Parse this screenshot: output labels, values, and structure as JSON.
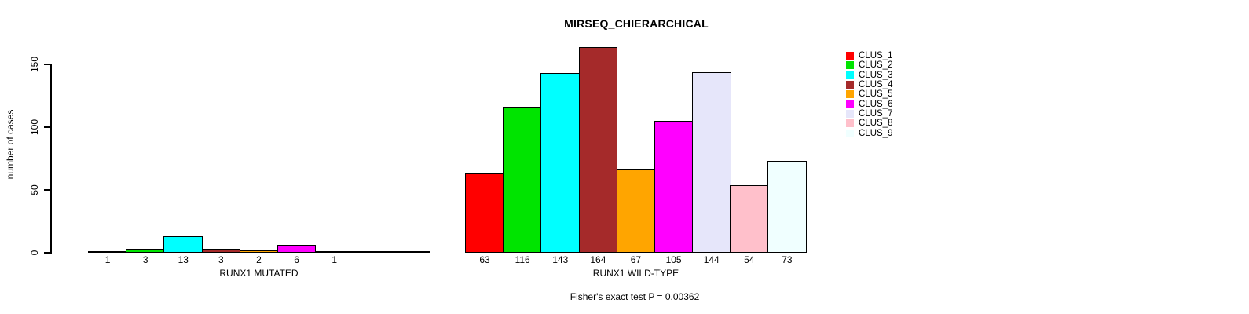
{
  "chart_data": {
    "type": "bar",
    "title": "MIRSEQ_CHIERARCHICAL",
    "ylabel": "number of cases",
    "ylim": [
      0,
      165
    ],
    "y_ticks": [
      0,
      50,
      100,
      150
    ],
    "grid": false,
    "legend_position": "right",
    "clusters": [
      {
        "label": "CLUS_1",
        "color": "#FF0000"
      },
      {
        "label": "CLUS_2",
        "color": "#00E400"
      },
      {
        "label": "CLUS_3",
        "color": "#00FFFF"
      },
      {
        "label": "CLUS_4",
        "color": "#A52A2A"
      },
      {
        "label": "CLUS_5",
        "color": "#FFA500"
      },
      {
        "label": "CLUS_6",
        "color": "#FF00FF"
      },
      {
        "label": "CLUS_7",
        "color": "#E6E6FA"
      },
      {
        "label": "CLUS_8",
        "color": "#FFC0CB"
      },
      {
        "label": "CLUS_9",
        "color": "#F0FFFF"
      }
    ],
    "groups": [
      {
        "label": "RUNX1 MUTATED",
        "values": [
          1,
          3,
          13,
          3,
          2,
          6,
          1,
          0,
          0
        ]
      },
      {
        "label": "RUNX1 WILD-TYPE",
        "values": [
          63,
          116,
          143,
          164,
          67,
          105,
          144,
          54,
          73
        ]
      }
    ],
    "annotation": "Fisher's exact test P = 0.00362"
  }
}
